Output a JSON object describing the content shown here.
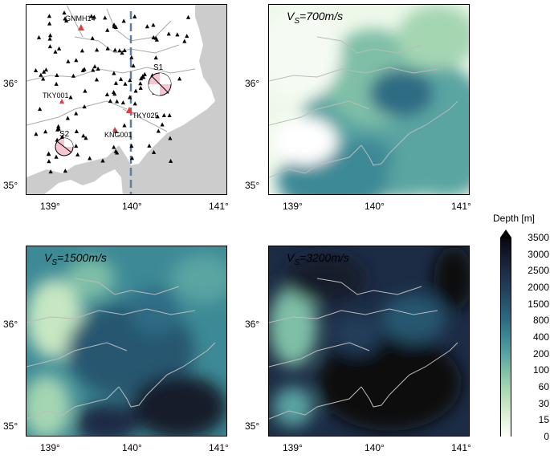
{
  "axes": {
    "lon_ticks": [
      "139°",
      "140°",
      "141°"
    ],
    "lat_ticks": [
      "36°",
      "35°"
    ]
  },
  "panels": [
    {
      "title_prefix": "",
      "title_main": ""
    },
    {
      "title_prefix": "V",
      "title_sub": "S",
      "title_main": "=700m/s"
    },
    {
      "title_prefix": "V",
      "title_sub": "S",
      "title_main": "=1500m/s"
    },
    {
      "title_prefix": "V",
      "title_sub": "S",
      "title_main": "=3200m/s"
    }
  ],
  "stations": [
    {
      "name": "GNMH14"
    },
    {
      "name": "TKY001"
    },
    {
      "name": "TKY025"
    },
    {
      "name": "KNG001"
    }
  ],
  "sources": [
    {
      "name": "S1"
    },
    {
      "name": "S2"
    }
  ],
  "colorbar": {
    "title": "Depth [m]",
    "labels": [
      "3500",
      "3000",
      "2500",
      "2000",
      "1500",
      "800",
      "400",
      "200",
      "100",
      "60",
      "30",
      "15",
      "0"
    ],
    "colors": [
      "#07070f",
      "#141a2c",
      "#1c2c45",
      "#213e5a",
      "#265670",
      "#2d6c84",
      "#3d8a96",
      "#5aa4a2",
      "#7fbfa7",
      "#a4d6b2",
      "#c6e7c2",
      "#e5f4de",
      "#ffffff"
    ]
  },
  "colors": {
    "station": "#000000",
    "marked_station": "#e83a3a",
    "profile_line": "#5b7fa6",
    "land_mask": "#cccccc"
  }
}
